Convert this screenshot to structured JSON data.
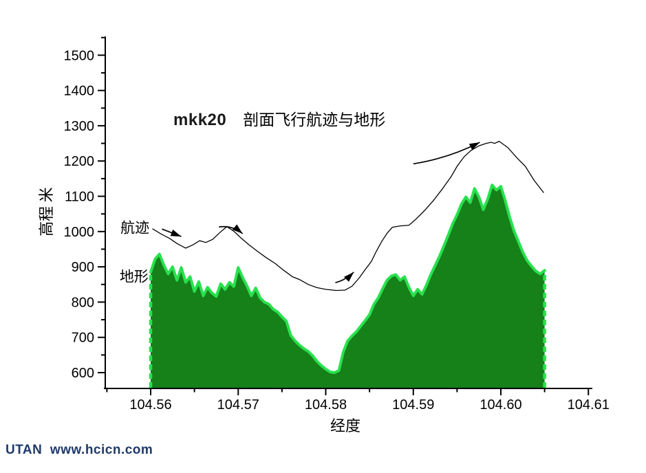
{
  "title": {
    "prefix": "mkk20",
    "main": "剖面飞行航迹与地形"
  },
  "watermark": "UTAN  www.hcicn.com",
  "chart_data": {
    "type": "area",
    "title": "mkk20 剖面飞行航迹与地形",
    "xlabel": "经度",
    "ylabel": "高程 米",
    "xlim": [
      104.5547,
      104.611
    ],
    "ylim": [
      555,
      1568
    ],
    "grid": false,
    "legend_position": "inline-annotations",
    "x_major_ticks": [
      {
        "value": 104.56,
        "label": "104.56"
      },
      {
        "value": 104.57,
        "label": "104.57"
      },
      {
        "value": 104.58,
        "label": "104.58"
      },
      {
        "value": 104.59,
        "label": "104.59"
      },
      {
        "value": 104.6,
        "label": "104.60"
      },
      {
        "value": 104.61,
        "label": "104.61"
      }
    ],
    "x_minor_ticks": [
      104.555,
      104.565,
      104.575,
      104.585,
      104.595,
      104.605
    ],
    "y_major_ticks": [
      {
        "value": 600,
        "label": "600"
      },
      {
        "value": 700,
        "label": "700"
      },
      {
        "value": 800,
        "label": "800"
      },
      {
        "value": 900,
        "label": "900"
      },
      {
        "value": 1000,
        "label": "1000"
      },
      {
        "value": 1100,
        "label": "1100"
      },
      {
        "value": 1200,
        "label": "1200"
      },
      {
        "value": 1300,
        "label": "1300"
      },
      {
        "value": 1400,
        "label": "1400"
      },
      {
        "value": 1500,
        "label": "1500"
      }
    ],
    "y_minor_ticks": [
      650,
      750,
      850,
      950,
      1050,
      1150,
      1250,
      1350,
      1450,
      1550
    ],
    "colors": {
      "terrain_fill": "#168019",
      "terrain_edge": "#28e14e",
      "trajectory": "#000000",
      "axis": "#000000",
      "watermark": "#1e3a6a"
    },
    "series": [
      {
        "name": "地形",
        "type": "area",
        "points": [
          [
            104.56,
            885
          ],
          [
            104.5605,
            922
          ],
          [
            104.561,
            936
          ],
          [
            104.5615,
            905
          ],
          [
            104.562,
            880
          ],
          [
            104.5625,
            900
          ],
          [
            104.563,
            862
          ],
          [
            104.5635,
            898
          ],
          [
            104.564,
            856
          ],
          [
            104.5645,
            872
          ],
          [
            104.565,
            830
          ],
          [
            104.5655,
            858
          ],
          [
            104.566,
            818
          ],
          [
            104.5665,
            842
          ],
          [
            104.567,
            826
          ],
          [
            104.5675,
            816
          ],
          [
            104.568,
            852
          ],
          [
            104.5685,
            836
          ],
          [
            104.569,
            856
          ],
          [
            104.5695,
            844
          ],
          [
            104.57,
            898
          ],
          [
            104.5705,
            870
          ],
          [
            104.571,
            846
          ],
          [
            104.5715,
            818
          ],
          [
            104.572,
            840
          ],
          [
            104.5725,
            812
          ],
          [
            104.573,
            800
          ],
          [
            104.5735,
            794
          ],
          [
            104.574,
            780
          ],
          [
            104.5745,
            772
          ],
          [
            104.575,
            758
          ],
          [
            104.5755,
            746
          ],
          [
            104.576,
            706
          ],
          [
            104.5765,
            690
          ],
          [
            104.577,
            678
          ],
          [
            104.5775,
            668
          ],
          [
            104.578,
            660
          ],
          [
            104.5785,
            648
          ],
          [
            104.579,
            632
          ],
          [
            104.5795,
            620
          ],
          [
            104.58,
            610
          ],
          [
            104.5805,
            602
          ],
          [
            104.581,
            600
          ],
          [
            104.5815,
            606
          ],
          [
            104.582,
            658
          ],
          [
            104.5825,
            690
          ],
          [
            104.583,
            704
          ],
          [
            104.5835,
            716
          ],
          [
            104.584,
            732
          ],
          [
            104.5845,
            748
          ],
          [
            104.585,
            764
          ],
          [
            104.5855,
            794
          ],
          [
            104.586,
            812
          ],
          [
            104.5865,
            838
          ],
          [
            104.587,
            862
          ],
          [
            104.5875,
            874
          ],
          [
            104.588,
            878
          ],
          [
            104.5885,
            862
          ],
          [
            104.589,
            872
          ],
          [
            104.5895,
            842
          ],
          [
            104.59,
            818
          ],
          [
            104.5905,
            836
          ],
          [
            104.591,
            822
          ],
          [
            104.5915,
            848
          ],
          [
            104.592,
            878
          ],
          [
            104.5925,
            904
          ],
          [
            104.593,
            930
          ],
          [
            104.5935,
            960
          ],
          [
            104.594,
            990
          ],
          [
            104.5945,
            1022
          ],
          [
            104.595,
            1048
          ],
          [
            104.5955,
            1078
          ],
          [
            104.596,
            1098
          ],
          [
            104.5965,
            1082
          ],
          [
            104.597,
            1122
          ],
          [
            104.5975,
            1098
          ],
          [
            104.598,
            1062
          ],
          [
            104.5985,
            1092
          ],
          [
            104.599,
            1132
          ],
          [
            104.5995,
            1118
          ],
          [
            104.6,
            1128
          ],
          [
            104.6005,
            1088
          ],
          [
            104.601,
            1042
          ],
          [
            104.6015,
            1002
          ],
          [
            104.602,
            972
          ],
          [
            104.6025,
            942
          ],
          [
            104.603,
            918
          ],
          [
            104.6035,
            902
          ],
          [
            104.604,
            888
          ],
          [
            104.6045,
            880
          ],
          [
            104.605,
            890
          ]
        ]
      },
      {
        "name": "航迹",
        "type": "line",
        "points": [
          [
            104.5602,
            1008
          ],
          [
            104.5612,
            993
          ],
          [
            104.5622,
            980
          ],
          [
            104.563,
            966
          ],
          [
            104.564,
            953
          ],
          [
            104.5648,
            962
          ],
          [
            104.5656,
            974
          ],
          [
            104.5663,
            969
          ],
          [
            104.5671,
            978
          ],
          [
            104.5679,
            997
          ],
          [
            104.5687,
            1014
          ],
          [
            104.5695,
            1001
          ],
          [
            104.5703,
            982
          ],
          [
            104.5712,
            963
          ],
          [
            104.5722,
            944
          ],
          [
            104.5732,
            926
          ],
          [
            104.5742,
            910
          ],
          [
            104.5752,
            890
          ],
          [
            104.5762,
            872
          ],
          [
            104.577,
            864
          ],
          [
            104.578,
            850
          ],
          [
            104.579,
            841
          ],
          [
            104.58,
            836
          ],
          [
            104.5812,
            833
          ],
          [
            104.5822,
            834
          ],
          [
            104.583,
            845
          ],
          [
            104.5838,
            868
          ],
          [
            104.5845,
            892
          ],
          [
            104.5852,
            915
          ],
          [
            104.5858,
            945
          ],
          [
            104.5864,
            972
          ],
          [
            104.587,
            995
          ],
          [
            104.5876,
            1012
          ],
          [
            104.5885,
            1016
          ],
          [
            104.5895,
            1018
          ],
          [
            104.5903,
            1035
          ],
          [
            104.5913,
            1060
          ],
          [
            104.5923,
            1088
          ],
          [
            104.5933,
            1120
          ],
          [
            104.5943,
            1155
          ],
          [
            104.595,
            1185
          ],
          [
            104.5958,
            1212
          ],
          [
            104.5966,
            1230
          ],
          [
            104.5975,
            1243
          ],
          [
            104.5983,
            1250
          ],
          [
            104.5989,
            1253
          ],
          [
            104.5993,
            1250
          ],
          [
            104.5998,
            1256
          ],
          [
            104.6002,
            1249
          ],
          [
            104.6008,
            1238
          ],
          [
            104.6018,
            1210
          ],
          [
            104.6028,
            1185
          ],
          [
            104.6038,
            1145
          ],
          [
            104.6049,
            1110
          ]
        ]
      }
    ],
    "annotations": {
      "series_labels": [
        {
          "text": "航迹",
          "lon": 104.5582,
          "elev": 1012
        },
        {
          "text": "地形",
          "lon": 104.5581,
          "elev": 874
        }
      ],
      "arrows": [
        {
          "tail": [
            104.5613,
            1007
          ],
          "tip": [
            104.5635,
            986
          ],
          "bend": 0
        },
        {
          "tail": [
            104.5678,
            1013
          ],
          "tip": [
            104.5705,
            994
          ],
          "bend": 8
        },
        {
          "tail": [
            104.5811,
            855
          ],
          "tip": [
            104.5832,
            885
          ],
          "bend": -4
        },
        {
          "tail": [
            104.59,
            1192
          ],
          "tip": [
            104.5976,
            1253
          ],
          "bend": -8
        }
      ]
    }
  }
}
